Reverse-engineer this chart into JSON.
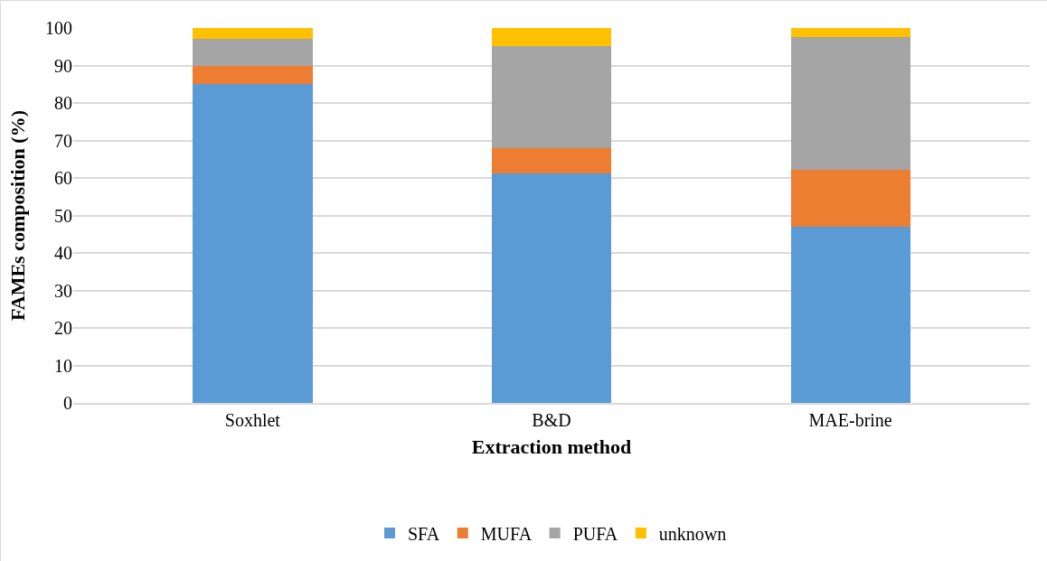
{
  "chart_data": {
    "type": "bar",
    "stacked": true,
    "xlabel": "Extraction method",
    "ylabel": "FAMEs composition (%)",
    "categories": [
      "Soxhlet",
      "B&D",
      "MAE-brine"
    ],
    "series": [
      {
        "name": "SFA",
        "color": "#5b9bd5",
        "values": [
          85.1,
          61.2,
          47.0
        ]
      },
      {
        "name": "MUFA",
        "color": "#ed7d31",
        "values": [
          4.9,
          6.8,
          15.1
        ]
      },
      {
        "name": "PUFA",
        "color": "#a5a5a5",
        "values": [
          7.2,
          27.1,
          35.4
        ]
      },
      {
        "name": "unknown",
        "color": "#ffc000",
        "values": [
          2.8,
          4.9,
          2.5
        ]
      }
    ],
    "ylim": [
      0,
      100
    ],
    "yticks": [
      0,
      10,
      20,
      30,
      40,
      50,
      60,
      70,
      80,
      90,
      100
    ],
    "grid": "y",
    "legend": "bottom"
  }
}
